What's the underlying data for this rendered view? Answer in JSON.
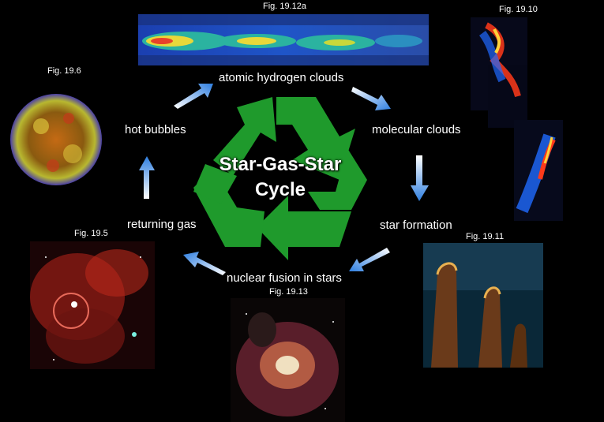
{
  "diagram": {
    "title_line1": "Star-Gas-Star",
    "title_line2": "Cycle",
    "stages": {
      "atomic": "atomic hydrogen clouds",
      "molecular": "molecular clouds",
      "formation": "star formation",
      "fusion": "nuclear fusion in stars",
      "returning": "returning gas",
      "bubbles": "hot bubbles"
    },
    "figures": {
      "fig_19_12a": "Fig. 19.12a",
      "fig_19_10": "Fig. 19.10",
      "fig_19_6": "Fig. 19.6",
      "fig_19_5": "Fig. 19.5",
      "fig_19_11": "Fig. 19.11",
      "fig_19_13": "Fig. 19.13"
    },
    "colors": {
      "recycle_green": "#1f9a2c",
      "arrow_blue": "#2f7fe0",
      "text": "#ffffff",
      "background": "#000000"
    }
  }
}
